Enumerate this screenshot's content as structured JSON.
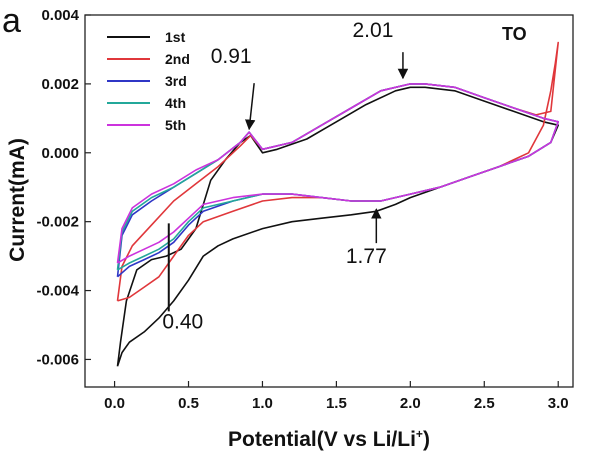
{
  "chart_data": {
    "type": "line",
    "panel_label": "a",
    "tag": "TO",
    "xlabel": "Potential(V vs Li/Li",
    "xlabel_sup": "+",
    "xlabel_close": ")",
    "ylabel": "Current(mA)",
    "xlim": [
      -0.2,
      3.1
    ],
    "ylim": [
      -0.0068,
      0.004
    ],
    "x_ticks": [
      0.0,
      0.5,
      1.0,
      1.5,
      2.0,
      2.5,
      3.0
    ],
    "x_tick_labels": [
      "0.0",
      "0.5",
      "1.0",
      "1.5",
      "2.0",
      "2.5",
      "3.0"
    ],
    "y_ticks": [
      -0.006,
      -0.004,
      -0.002,
      0.0,
      0.002,
      0.004
    ],
    "y_tick_labels": [
      "-0.006",
      "-0.004",
      "-0.002",
      "0.000",
      "0.002",
      "0.004"
    ],
    "grid": false,
    "legend_position": "top-left",
    "annotations": [
      {
        "text": "0.91",
        "x": 0.91,
        "y": 0.00057
      },
      {
        "text": "2.01",
        "x": 1.95,
        "y": 0.00205
      },
      {
        "text": "1.77",
        "x": 1.77,
        "y": -0.00152
      },
      {
        "text": "0.40",
        "x": 0.38,
        "y": -0.00205
      }
    ],
    "series": [
      {
        "name": "1st",
        "color": "#111111",
        "x": [
          0.02,
          0.05,
          0.1,
          0.2,
          0.3,
          0.4,
          0.5,
          0.6,
          0.7,
          0.8,
          1.0,
          1.2,
          1.4,
          1.6,
          1.77,
          1.9,
          2.0,
          2.2,
          2.4,
          2.6,
          2.8,
          2.95,
          3.0,
          2.9,
          2.7,
          2.5,
          2.3,
          2.1,
          2.0,
          1.9,
          1.7,
          1.5,
          1.3,
          1.1,
          1.0,
          0.92,
          0.85,
          0.75,
          0.65,
          0.55,
          0.45,
          0.35,
          0.25,
          0.15,
          0.08,
          0.04,
          0.02
        ],
        "y": [
          -0.0062,
          -0.0058,
          -0.0055,
          -0.0052,
          -0.0048,
          -0.0043,
          -0.0037,
          -0.003,
          -0.0027,
          -0.0025,
          -0.0022,
          -0.002,
          -0.0019,
          -0.0018,
          -0.0017,
          -0.0015,
          -0.0013,
          -0.001,
          -0.0007,
          -0.0004,
          -0.0001,
          0.0003,
          0.0008,
          0.0009,
          0.0012,
          0.0015,
          0.0018,
          0.0019,
          0.0019,
          0.0018,
          0.0014,
          0.0009,
          0.0004,
          0.0001,
          0.0,
          0.0005,
          0.0003,
          -0.0002,
          -0.0008,
          -0.0022,
          -0.0028,
          -0.003,
          -0.0031,
          -0.0034,
          -0.0043,
          -0.0055,
          -0.0062
        ]
      },
      {
        "name": "2nd",
        "color": "#e0373b",
        "x": [
          0.02,
          0.1,
          0.2,
          0.3,
          0.4,
          0.5,
          0.6,
          0.8,
          1.0,
          1.2,
          1.4,
          1.6,
          1.8,
          2.0,
          2.2,
          2.4,
          2.6,
          2.8,
          2.9,
          2.95,
          2.98,
          3.0,
          2.95,
          2.85,
          2.7,
          2.5,
          2.3,
          2.1,
          2.0,
          1.8,
          1.6,
          1.4,
          1.2,
          1.0,
          0.92,
          0.85,
          0.7,
          0.55,
          0.4,
          0.25,
          0.12,
          0.05,
          0.02
        ],
        "y": [
          -0.0043,
          -0.0042,
          -0.0039,
          -0.0036,
          -0.003,
          -0.0024,
          -0.002,
          -0.0017,
          -0.0014,
          -0.0013,
          -0.0013,
          -0.0014,
          -0.0014,
          -0.0012,
          -0.001,
          -0.0007,
          -0.0004,
          0.0,
          0.0008,
          0.0018,
          0.0026,
          0.0032,
          0.0012,
          0.0011,
          0.0013,
          0.0016,
          0.0019,
          0.002,
          0.002,
          0.0018,
          0.0013,
          0.0008,
          0.0003,
          0.0001,
          0.0005,
          0.0002,
          -0.0004,
          -0.0009,
          -0.0014,
          -0.0021,
          -0.0027,
          -0.0033,
          -0.0043
        ]
      },
      {
        "name": "3rd",
        "color": "#2f36c6",
        "x": [
          0.02,
          0.1,
          0.2,
          0.3,
          0.4,
          0.5,
          0.6,
          0.8,
          1.0,
          1.2,
          1.4,
          1.6,
          1.8,
          2.0,
          2.2,
          2.4,
          2.6,
          2.8,
          2.95,
          3.0,
          2.9,
          2.7,
          2.5,
          2.3,
          2.1,
          2.0,
          1.8,
          1.6,
          1.4,
          1.2,
          1.0,
          0.91,
          0.85,
          0.7,
          0.55,
          0.4,
          0.25,
          0.12,
          0.05,
          0.02
        ],
        "y": [
          -0.0036,
          -0.0033,
          -0.0031,
          -0.0029,
          -0.0026,
          -0.0021,
          -0.0017,
          -0.0014,
          -0.0012,
          -0.0012,
          -0.0013,
          -0.0014,
          -0.0014,
          -0.0012,
          -0.001,
          -0.0007,
          -0.0004,
          -0.0001,
          0.0003,
          0.0009,
          0.001,
          0.0013,
          0.0016,
          0.0019,
          0.002,
          0.002,
          0.0018,
          0.0013,
          0.0008,
          0.0003,
          0.0001,
          0.0006,
          0.0003,
          -0.0002,
          -0.0006,
          -0.001,
          -0.0014,
          -0.0018,
          -0.0024,
          -0.0036
        ]
      },
      {
        "name": "4th",
        "color": "#23a89a",
        "x": [
          0.02,
          0.1,
          0.2,
          0.3,
          0.4,
          0.5,
          0.6,
          0.8,
          1.0,
          1.2,
          1.4,
          1.6,
          1.8,
          2.0,
          2.2,
          2.4,
          2.6,
          2.8,
          2.95,
          3.0,
          2.9,
          2.7,
          2.5,
          2.3,
          2.1,
          2.0,
          1.8,
          1.6,
          1.4,
          1.2,
          1.0,
          0.91,
          0.85,
          0.7,
          0.55,
          0.4,
          0.25,
          0.12,
          0.05,
          0.02
        ],
        "y": [
          -0.0034,
          -0.0032,
          -0.003,
          -0.0028,
          -0.0025,
          -0.002,
          -0.0016,
          -0.0014,
          -0.0012,
          -0.0012,
          -0.0013,
          -0.0014,
          -0.0014,
          -0.0012,
          -0.001,
          -0.0007,
          -0.0004,
          -0.0001,
          0.0003,
          0.0009,
          0.001,
          0.0013,
          0.0016,
          0.0019,
          0.002,
          0.002,
          0.0018,
          0.0013,
          0.0008,
          0.0003,
          0.0001,
          0.0006,
          0.0003,
          -0.0002,
          -0.0006,
          -0.001,
          -0.0013,
          -0.0017,
          -0.0023,
          -0.0034
        ]
      },
      {
        "name": "5th",
        "color": "#cc33dd",
        "x": [
          0.02,
          0.1,
          0.2,
          0.3,
          0.4,
          0.5,
          0.6,
          0.8,
          1.0,
          1.2,
          1.4,
          1.6,
          1.8,
          2.0,
          2.2,
          2.4,
          2.6,
          2.8,
          2.95,
          3.0,
          2.9,
          2.7,
          2.5,
          2.3,
          2.1,
          2.0,
          1.8,
          1.6,
          1.4,
          1.2,
          1.0,
          0.91,
          0.85,
          0.7,
          0.55,
          0.4,
          0.25,
          0.12,
          0.05,
          0.02
        ],
        "y": [
          -0.0032,
          -0.003,
          -0.0028,
          -0.0026,
          -0.0023,
          -0.0019,
          -0.0015,
          -0.0013,
          -0.0012,
          -0.0012,
          -0.0013,
          -0.0014,
          -0.0014,
          -0.0012,
          -0.001,
          -0.0007,
          -0.0004,
          -0.0001,
          0.0003,
          0.0009,
          0.001,
          0.0013,
          0.0016,
          0.0019,
          0.002,
          0.002,
          0.0018,
          0.0013,
          0.0008,
          0.0003,
          0.0001,
          0.0006,
          0.0003,
          -0.0002,
          -0.0005,
          -0.0009,
          -0.0012,
          -0.0016,
          -0.0022,
          -0.0032
        ]
      }
    ]
  }
}
